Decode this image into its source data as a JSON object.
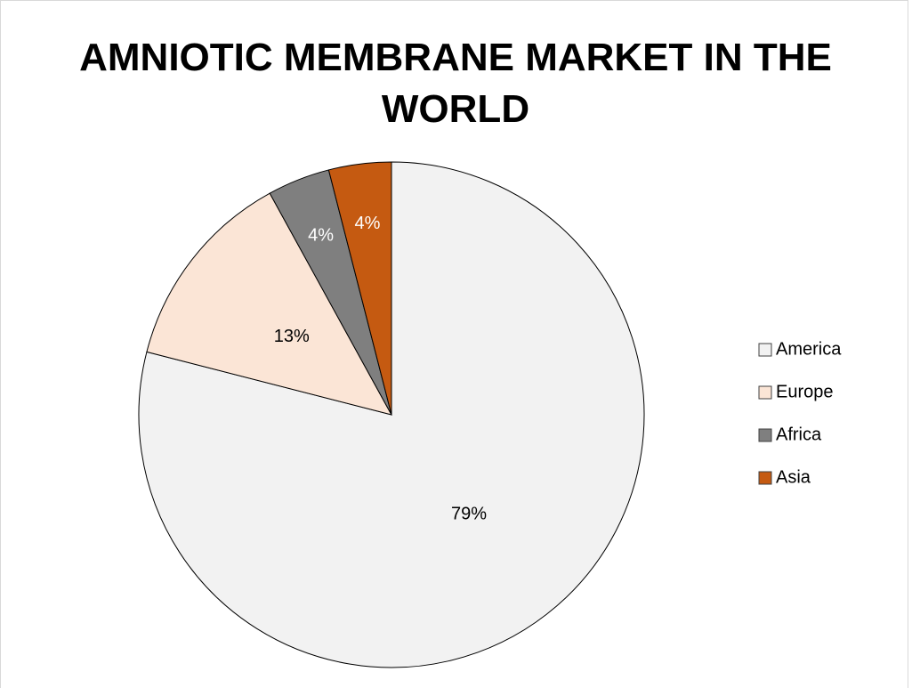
{
  "chart_data": {
    "type": "pie",
    "title": "AMNIOTIC MEMBRANE MARKET IN THE WORLD",
    "categories": [
      "America",
      "Europe",
      "Africa",
      "Asia"
    ],
    "values": [
      79,
      13,
      4,
      4
    ],
    "value_labels": [
      "79%",
      "13%",
      "4%",
      "4%"
    ],
    "colors": [
      "#f2f2f2",
      "#fbe5d6",
      "#7f7f7f",
      "#c55a11"
    ],
    "legend": "right"
  }
}
